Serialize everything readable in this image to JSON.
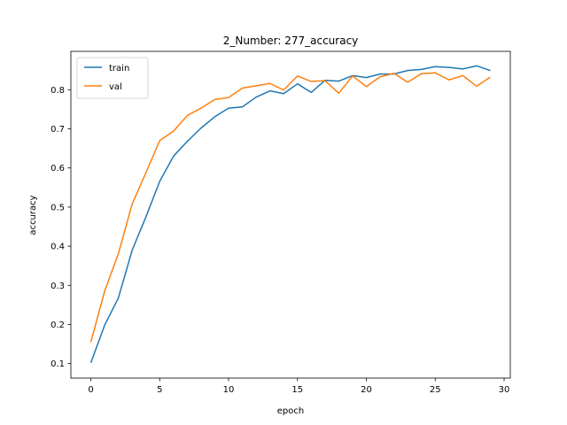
{
  "chart_data": {
    "type": "line",
    "title": "2_Number: 277_accuracy",
    "xlabel": "epoch",
    "ylabel": "accuracy",
    "xlim": [
      -1.45,
      30.45
    ],
    "ylim": [
      0.063,
      0.898
    ],
    "xticks": [
      0,
      5,
      10,
      15,
      20,
      25,
      30
    ],
    "yticks": [
      0.1,
      0.2,
      0.3,
      0.4,
      0.5,
      0.6,
      0.7,
      0.8
    ],
    "legend_position": "top-left",
    "x": [
      0,
      1,
      2,
      3,
      4,
      5,
      6,
      7,
      8,
      9,
      10,
      11,
      12,
      13,
      14,
      15,
      16,
      17,
      18,
      19,
      20,
      21,
      22,
      23,
      24,
      25,
      26,
      27,
      28,
      29
    ],
    "series": [
      {
        "name": "train",
        "color": "#1f77b4",
        "values": [
          0.102,
          0.198,
          0.268,
          0.39,
          0.475,
          0.566,
          0.63,
          0.668,
          0.702,
          0.731,
          0.753,
          0.756,
          0.781,
          0.797,
          0.79,
          0.815,
          0.793,
          0.824,
          0.822,
          0.836,
          0.831,
          0.84,
          0.84,
          0.849,
          0.852,
          0.859,
          0.857,
          0.853,
          0.861,
          0.849
        ]
      },
      {
        "name": "val",
        "color": "#ff7f0e",
        "values": [
          0.155,
          0.285,
          0.381,
          0.508,
          0.588,
          0.67,
          0.694,
          0.734,
          0.753,
          0.775,
          0.78,
          0.804,
          0.81,
          0.816,
          0.799,
          0.835,
          0.821,
          0.823,
          0.791,
          0.835,
          0.808,
          0.833,
          0.842,
          0.819,
          0.841,
          0.843,
          0.825,
          0.836,
          0.809,
          0.832
        ]
      }
    ]
  }
}
